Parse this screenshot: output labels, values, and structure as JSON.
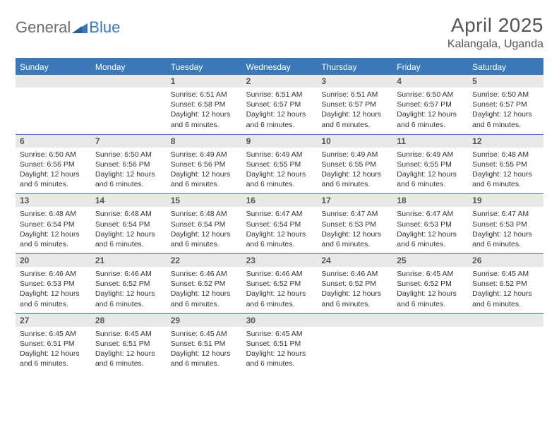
{
  "logo": {
    "part1": "General",
    "part2": "Blue"
  },
  "title": "April 2025",
  "location": "Kalangala, Uganda",
  "colors": {
    "brand": "#3b78b8",
    "header_bg": "#3b78b8",
    "header_text": "#ffffff",
    "daynum_bg": "#e9e9e9",
    "text": "#333333",
    "logo_gray": "#6b6b6b"
  },
  "day_names": [
    "Sunday",
    "Monday",
    "Tuesday",
    "Wednesday",
    "Thursday",
    "Friday",
    "Saturday"
  ],
  "weeks": [
    [
      null,
      null,
      {
        "d": "1",
        "sr": "6:51 AM",
        "ss": "6:58 PM",
        "dl": "12 hours and 6 minutes."
      },
      {
        "d": "2",
        "sr": "6:51 AM",
        "ss": "6:57 PM",
        "dl": "12 hours and 6 minutes."
      },
      {
        "d": "3",
        "sr": "6:51 AM",
        "ss": "6:57 PM",
        "dl": "12 hours and 6 minutes."
      },
      {
        "d": "4",
        "sr": "6:50 AM",
        "ss": "6:57 PM",
        "dl": "12 hours and 6 minutes."
      },
      {
        "d": "5",
        "sr": "6:50 AM",
        "ss": "6:57 PM",
        "dl": "12 hours and 6 minutes."
      }
    ],
    [
      {
        "d": "6",
        "sr": "6:50 AM",
        "ss": "6:56 PM",
        "dl": "12 hours and 6 minutes."
      },
      {
        "d": "7",
        "sr": "6:50 AM",
        "ss": "6:56 PM",
        "dl": "12 hours and 6 minutes."
      },
      {
        "d": "8",
        "sr": "6:49 AM",
        "ss": "6:56 PM",
        "dl": "12 hours and 6 minutes."
      },
      {
        "d": "9",
        "sr": "6:49 AM",
        "ss": "6:55 PM",
        "dl": "12 hours and 6 minutes."
      },
      {
        "d": "10",
        "sr": "6:49 AM",
        "ss": "6:55 PM",
        "dl": "12 hours and 6 minutes."
      },
      {
        "d": "11",
        "sr": "6:49 AM",
        "ss": "6:55 PM",
        "dl": "12 hours and 6 minutes."
      },
      {
        "d": "12",
        "sr": "6:48 AM",
        "ss": "6:55 PM",
        "dl": "12 hours and 6 minutes."
      }
    ],
    [
      {
        "d": "13",
        "sr": "6:48 AM",
        "ss": "6:54 PM",
        "dl": "12 hours and 6 minutes."
      },
      {
        "d": "14",
        "sr": "6:48 AM",
        "ss": "6:54 PM",
        "dl": "12 hours and 6 minutes."
      },
      {
        "d": "15",
        "sr": "6:48 AM",
        "ss": "6:54 PM",
        "dl": "12 hours and 6 minutes."
      },
      {
        "d": "16",
        "sr": "6:47 AM",
        "ss": "6:54 PM",
        "dl": "12 hours and 6 minutes."
      },
      {
        "d": "17",
        "sr": "6:47 AM",
        "ss": "6:53 PM",
        "dl": "12 hours and 6 minutes."
      },
      {
        "d": "18",
        "sr": "6:47 AM",
        "ss": "6:53 PM",
        "dl": "12 hours and 6 minutes."
      },
      {
        "d": "19",
        "sr": "6:47 AM",
        "ss": "6:53 PM",
        "dl": "12 hours and 6 minutes."
      }
    ],
    [
      {
        "d": "20",
        "sr": "6:46 AM",
        "ss": "6:53 PM",
        "dl": "12 hours and 6 minutes."
      },
      {
        "d": "21",
        "sr": "6:46 AM",
        "ss": "6:52 PM",
        "dl": "12 hours and 6 minutes."
      },
      {
        "d": "22",
        "sr": "6:46 AM",
        "ss": "6:52 PM",
        "dl": "12 hours and 6 minutes."
      },
      {
        "d": "23",
        "sr": "6:46 AM",
        "ss": "6:52 PM",
        "dl": "12 hours and 6 minutes."
      },
      {
        "d": "24",
        "sr": "6:46 AM",
        "ss": "6:52 PM",
        "dl": "12 hours and 6 minutes."
      },
      {
        "d": "25",
        "sr": "6:45 AM",
        "ss": "6:52 PM",
        "dl": "12 hours and 6 minutes."
      },
      {
        "d": "26",
        "sr": "6:45 AM",
        "ss": "6:52 PM",
        "dl": "12 hours and 6 minutes."
      }
    ],
    [
      {
        "d": "27",
        "sr": "6:45 AM",
        "ss": "6:51 PM",
        "dl": "12 hours and 6 minutes."
      },
      {
        "d": "28",
        "sr": "6:45 AM",
        "ss": "6:51 PM",
        "dl": "12 hours and 6 minutes."
      },
      {
        "d": "29",
        "sr": "6:45 AM",
        "ss": "6:51 PM",
        "dl": "12 hours and 6 minutes."
      },
      {
        "d": "30",
        "sr": "6:45 AM",
        "ss": "6:51 PM",
        "dl": "12 hours and 6 minutes."
      },
      null,
      null,
      null
    ]
  ],
  "labels": {
    "sunrise": "Sunrise:",
    "sunset": "Sunset:",
    "daylight": "Daylight:"
  }
}
